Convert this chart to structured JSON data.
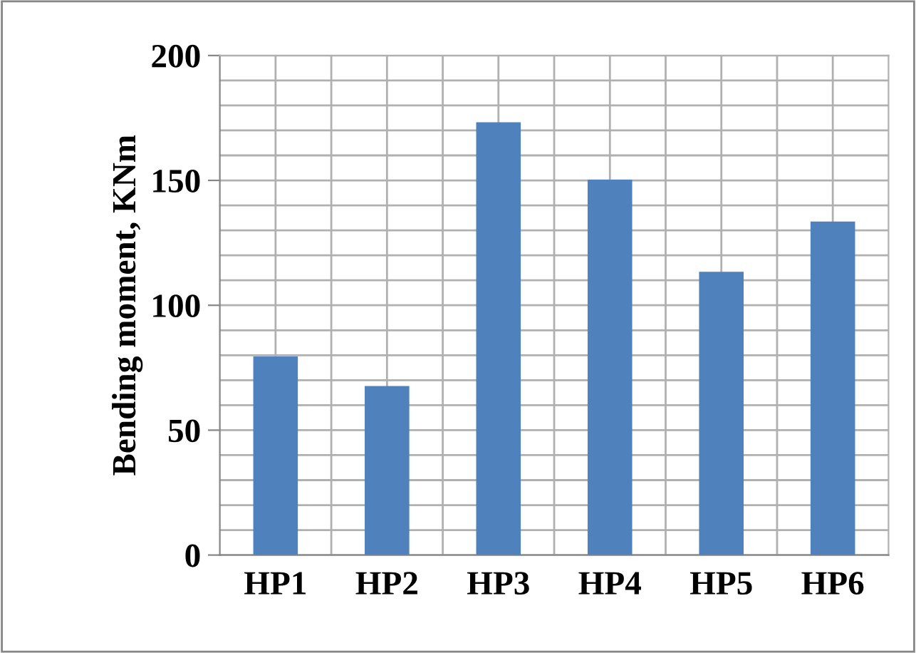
{
  "chart_data": {
    "type": "bar",
    "ylabel": "Bending moment, KNm",
    "categories": [
      "HP1",
      "HP2",
      "HP3",
      "HP4",
      "HP5",
      "HP6"
    ],
    "values": [
      79.5,
      67.7,
      173.3,
      150.3,
      113.4,
      133.5
    ],
    "color": "#4f81bd",
    "ylim": [
      0,
      200
    ],
    "yticks": [
      0,
      {
        "value": 10,
        "label": null
      },
      {
        "value": 20,
        "label": null
      },
      {
        "value": 30,
        "label": null
      },
      {
        "value": 40,
        "label": null
      },
      50,
      {
        "value": 60,
        "label": null
      },
      {
        "value": 70,
        "label": null
      },
      {
        "value": 80,
        "label": null
      },
      {
        "value": 90,
        "label": null
      },
      100,
      {
        "value": 110,
        "label": null
      },
      {
        "value": 120,
        "label": null
      },
      {
        "value": 130,
        "label": null
      },
      {
        "value": 140,
        "label": null
      },
      150,
      {
        "value": 160,
        "label": null
      },
      {
        "value": 170,
        "label": null
      },
      {
        "value": 180,
        "label": null
      },
      {
        "value": 190,
        "label": null
      },
      200
    ],
    "grid": true,
    "legend": false
  }
}
